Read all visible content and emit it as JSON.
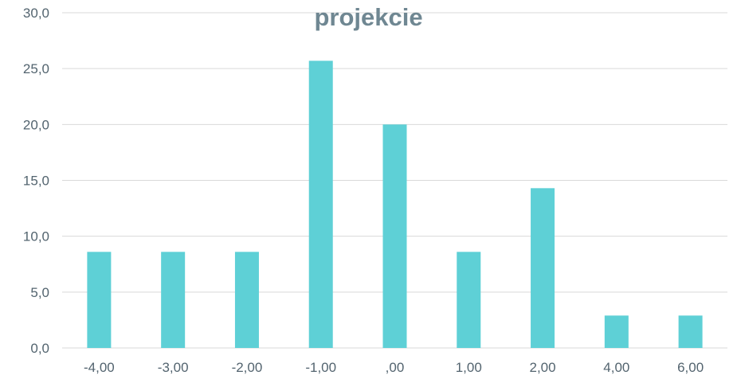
{
  "colors": {
    "bar": "#5ED0D6",
    "grid": "#D9D9D9",
    "axis_text": "#53646F",
    "title": "#6F8792"
  },
  "chart_data": {
    "type": "bar",
    "title": "projekcie",
    "xlabel": "",
    "ylabel": "",
    "categories": [
      "-4,00",
      "-3,00",
      "-2,00",
      "-1,00",
      ",00",
      "1,00",
      "2,00",
      "4,00",
      "6,00"
    ],
    "values": [
      8.6,
      8.6,
      8.6,
      25.7,
      20.0,
      8.6,
      14.3,
      2.9,
      2.9
    ],
    "ylim": [
      0,
      30
    ],
    "yticks": [
      "0,0",
      "5,0",
      "10,0",
      "15,0",
      "20,0",
      "25,0",
      "30,0"
    ],
    "grid": true,
    "legend": "none"
  }
}
